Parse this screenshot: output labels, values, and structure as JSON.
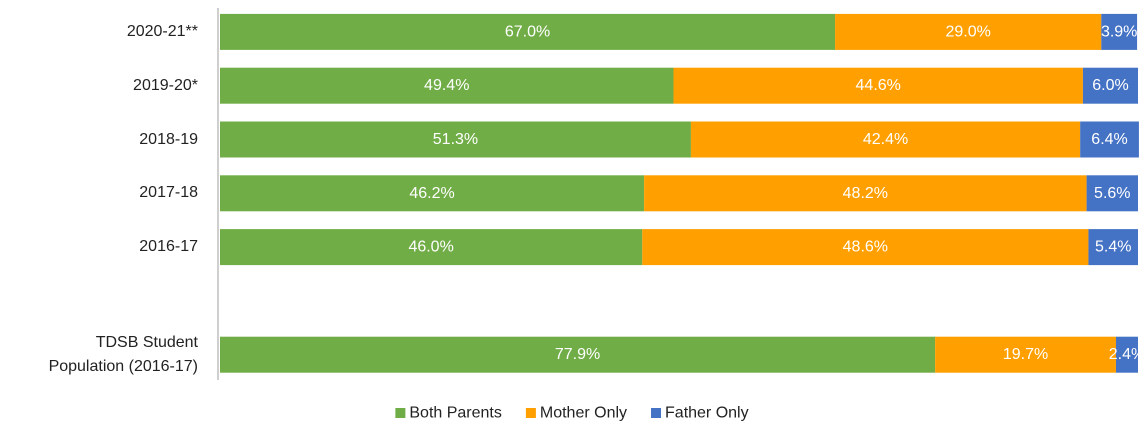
{
  "chart_data": {
    "type": "stacked-bar-horizontal",
    "categories": [
      "2020-21**",
      "2019-20*",
      "2018-19",
      "2017-18",
      "2016-17",
      null,
      "TDSB Student Population (2016-17)"
    ],
    "xlim": [
      0,
      100
    ],
    "legend": "bottom",
    "series": [
      {
        "name": "Both Parents",
        "color": "#70ad47",
        "values": [
          67.0,
          49.4,
          51.3,
          46.2,
          46.0,
          null,
          77.9
        ],
        "value_labels": [
          "67.0%",
          "49.4%",
          "51.3%",
          "46.2%",
          "46.0%",
          null,
          "77.9%"
        ]
      },
      {
        "name": "Mother Only",
        "color": "#ff9f00",
        "values": [
          29.0,
          44.6,
          42.4,
          48.2,
          48.6,
          null,
          19.7
        ],
        "value_labels": [
          "29.0%",
          "44.6%",
          "42.4%",
          "48.2%",
          "48.6%",
          null,
          "19.7%"
        ]
      },
      {
        "name": "Father Only",
        "color": "#4472c4",
        "values": [
          3.9,
          6.0,
          6.4,
          5.6,
          5.4,
          null,
          2.4
        ],
        "value_labels": [
          "3.9%",
          "6.0%",
          "6.4%",
          "5.6%",
          "5.4%",
          null,
          "2.4%"
        ]
      }
    ]
  }
}
